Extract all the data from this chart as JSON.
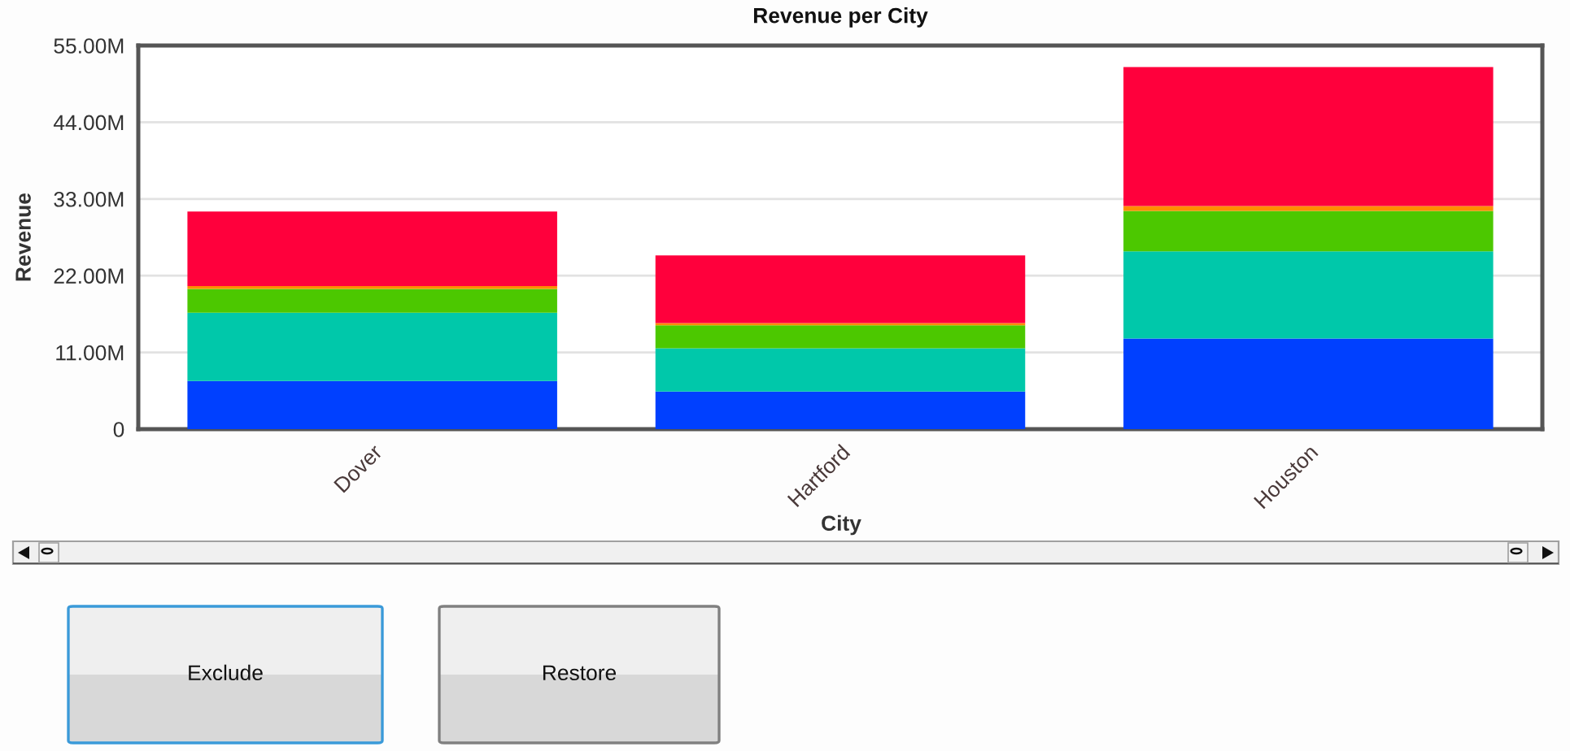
{
  "chart_data": {
    "type": "bar",
    "title": "Revenue per City",
    "xlabel": "City",
    "ylabel": "Revenue",
    "categories": [
      "Dover",
      "Hartford",
      "Houston"
    ],
    "stacked": true,
    "series": [
      {
        "color": "#0040ff",
        "values": [
          6.9,
          5.4,
          13.0
        ]
      },
      {
        "color": "#00c8aa",
        "values": [
          9.8,
          6.2,
          12.5
        ]
      },
      {
        "color": "#4cc800",
        "values": [
          3.4,
          3.3,
          5.8
        ]
      },
      {
        "color": "#ff8c00",
        "values": [
          0.4,
          0.3,
          0.7
        ]
      },
      {
        "color": "#ff003c",
        "values": [
          10.7,
          9.7,
          19.9
        ]
      }
    ],
    "ylim": [
      0,
      55
    ],
    "yticks": [
      0,
      {
        "value": 11,
        "label": "11.00M"
      },
      {
        "value": 22,
        "label": "22.00M"
      },
      {
        "value": 33,
        "label": "33.00M"
      },
      {
        "value": 44,
        "label": "44.00M"
      },
      {
        "value": 55,
        "label": "55.00M"
      }
    ],
    "grid": "y",
    "annotations": [
      "Exclude",
      "Restore"
    ]
  }
}
